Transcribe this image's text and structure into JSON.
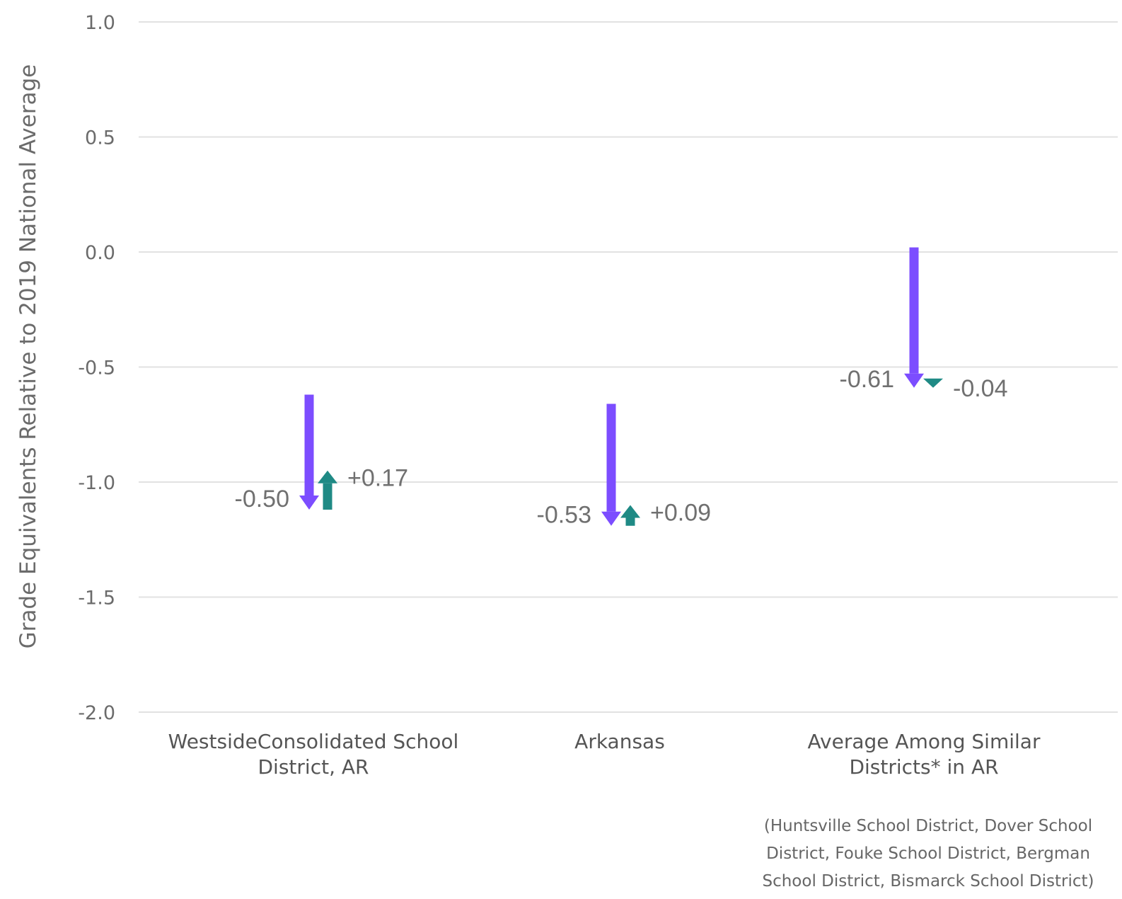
{
  "chart_data": {
    "type": "arrow",
    "ylabel": "Grade Equivalents Relative to 2019 National Average",
    "xlabel": "",
    "ylim": [
      -2.0,
      1.0
    ],
    "yticks": [
      1.0,
      0.5,
      0.0,
      -0.5,
      -1.0,
      -1.5,
      -2.0
    ],
    "ytick_labels": [
      "1.0",
      "0.5",
      "0.0",
      "-0.5",
      "-1.0",
      "-1.5",
      "-2.0"
    ],
    "grid": true,
    "categories": [
      [
        "WestsideConsolidated School",
        "District, AR"
      ],
      [
        "Arkansas"
      ],
      [
        "Average Among Similar",
        "Districts* in AR"
      ]
    ],
    "series": [
      {
        "color": "#7c4dff",
        "start": [
          -0.62,
          -0.66,
          0.02
        ],
        "end": [
          -1.12,
          -1.19,
          -0.59
        ],
        "labels": [
          "-0.50",
          "-0.53",
          "-0.61"
        ]
      },
      {
        "color": "#1f8a85",
        "start": [
          -1.12,
          -1.19,
          -0.55
        ],
        "end": [
          -0.95,
          -1.1,
          -0.59
        ],
        "labels": [
          "+0.17",
          "+0.09",
          "-0.04"
        ]
      }
    ],
    "footnote": [
      "(Huntsville School District, Dover School",
      "District, Fouke School District, Bergman",
      "School District, Bismarck School District)"
    ]
  }
}
